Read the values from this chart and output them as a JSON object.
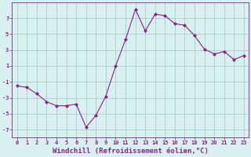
{
  "x": [
    0,
    1,
    2,
    3,
    4,
    5,
    6,
    7,
    8,
    9,
    10,
    11,
    12,
    13,
    14,
    15,
    16,
    17,
    18,
    19,
    20,
    21,
    22,
    23
  ],
  "y": [
    -1.5,
    -1.7,
    -2.5,
    -3.5,
    -4.0,
    -4.0,
    -3.8,
    -6.7,
    -5.2,
    -2.8,
    1.0,
    4.3,
    8.1,
    5.4,
    7.5,
    7.3,
    6.3,
    6.1,
    4.8,
    3.1,
    2.5,
    2.8,
    1.8,
    2.3
  ],
  "line_color": "#882288",
  "marker": "D",
  "marker_size": 2.0,
  "bg_color": "#d8f0f0",
  "grid_color": "#aacccc",
  "xlabel": "Windchill (Refroidissement éolien,°C)",
  "xlim": [
    -0.5,
    23.5
  ],
  "ylim": [
    -8,
    9
  ],
  "yticks": [
    -7,
    -5,
    -3,
    -1,
    1,
    3,
    5,
    7
  ],
  "xticks": [
    0,
    1,
    2,
    3,
    4,
    5,
    6,
    7,
    8,
    9,
    10,
    11,
    12,
    13,
    14,
    15,
    16,
    17,
    18,
    19,
    20,
    21,
    22,
    23
  ],
  "tick_label_fontsize": 5.0,
  "xlabel_fontsize": 6.5,
  "spine_color": "#882288"
}
